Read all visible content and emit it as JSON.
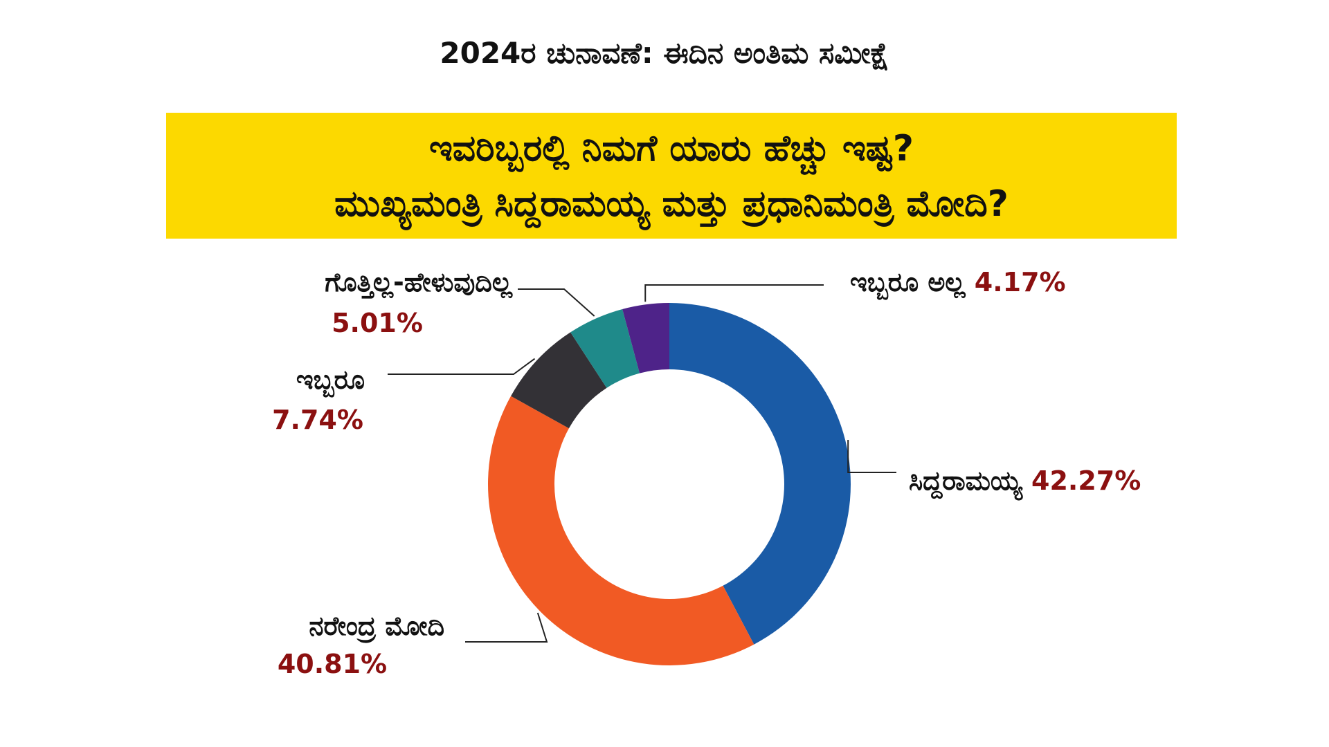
{
  "header": {
    "headline": "2024ರ ಚುನಾವಣೆ: ಈದಿನ ಅಂತಿಮ ಸಮೀಕ್ಷೆ",
    "question_line1": "ಇವರಿಬ್ಬರಲ್ಲಿ ನಿಮಗೆ ಯಾರು ಹೆಚ್ಚು ಇಷ್ಟ?",
    "question_line2": "ಮುಖ್ಯಮಂತ್ರಿ ಸಿದ್ದರಾಮಯ್ಯ ಮತ್ತು ಪ್ರಧಾನಿಮಂತ್ರಿ ಮೋದಿ?"
  },
  "colors": {
    "question_bg": "#fcd900",
    "value_text": "#8b1010",
    "leader_line": "#222222"
  },
  "chart_data": {
    "type": "pie",
    "donut": true,
    "title": "ಇವರಿಬ್ಬರಲ್ಲಿ ನಿಮಗೆ ಯಾರು ಹೆಚ್ಚು ಇಷ್ಟ? ಮುಖ್ಯಮಂತ್ರಿ ಸಿದ್ದರಾಮಯ್ಯ ಮತ್ತು ಪ್ರಧಾನಿಮಂತ್ರಿ ಮೋದಿ?",
    "unit": "%",
    "legend": "none",
    "slices": [
      {
        "label": "ಸಿದ್ದರಾಮಯ್ಯ",
        "value": 42.27,
        "value_label": "42.27%",
        "color": "#1a5ba6"
      },
      {
        "label": "ನರೇಂದ್ರ ಮೋದಿ",
        "value": 40.81,
        "value_label": "40.81%",
        "color": "#f15a24"
      },
      {
        "label": "ಇಬ್ಬರೂ",
        "value": 7.74,
        "value_label": "7.74%",
        "color": "#333136"
      },
      {
        "label": "ಗೊತ್ತಿಲ್ಲ-ಹೇಳುವುದಿಲ್ಲ",
        "value": 5.01,
        "value_label": "5.01%",
        "color": "#1f8a8a"
      },
      {
        "label": "ಇಬ್ಬರೂ ಅಲ್ಲ",
        "value": 4.17,
        "value_label": "4.17%",
        "color": "#4e2389"
      }
    ]
  }
}
